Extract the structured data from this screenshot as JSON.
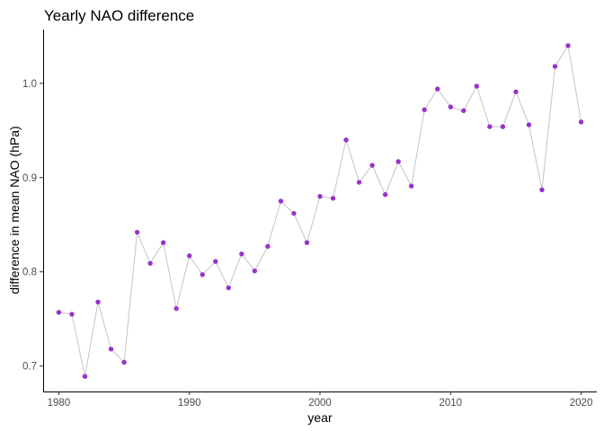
{
  "chart_data": {
    "type": "line",
    "title": "Yearly NAO difference",
    "xlabel": "year",
    "ylabel": "difference in mean NAO (hPa)",
    "xlim": [
      1978.8,
      2021.2
    ],
    "ylim": [
      0.673,
      1.057
    ],
    "x_ticks": [
      1980,
      1990,
      2000,
      2010,
      2020
    ],
    "y_ticks": [
      0.7,
      0.8,
      0.9,
      1.0
    ],
    "x_tick_labels": [
      "1980",
      "1990",
      "2000",
      "2010",
      "2020"
    ],
    "y_tick_labels": [
      "0.7",
      "0.8",
      "0.9",
      "1.0"
    ],
    "grid": false,
    "legend": "none",
    "line_color": "#c4c4c4",
    "point_color": "#9932cc",
    "x": [
      1980,
      1981,
      1982,
      1983,
      1984,
      1985,
      1986,
      1987,
      1988,
      1989,
      1990,
      1991,
      1992,
      1993,
      1994,
      1995,
      1996,
      1997,
      1998,
      1999,
      2000,
      2001,
      2002,
      2003,
      2004,
      2005,
      2006,
      2007,
      2008,
      2009,
      2010,
      2011,
      2012,
      2013,
      2014,
      2015,
      2016,
      2017,
      2018,
      2019,
      2020
    ],
    "values": [
      0.757,
      0.755,
      0.689,
      0.768,
      0.718,
      0.704,
      0.842,
      0.809,
      0.831,
      0.761,
      0.817,
      0.797,
      0.811,
      0.783,
      0.819,
      0.801,
      0.827,
      0.875,
      0.862,
      0.831,
      0.88,
      0.878,
      0.94,
      0.895,
      0.913,
      0.882,
      0.917,
      0.891,
      0.972,
      0.994,
      0.975,
      0.971,
      0.997,
      0.954,
      0.954,
      0.991,
      0.956,
      0.887,
      1.018,
      1.04,
      0.959
    ]
  }
}
